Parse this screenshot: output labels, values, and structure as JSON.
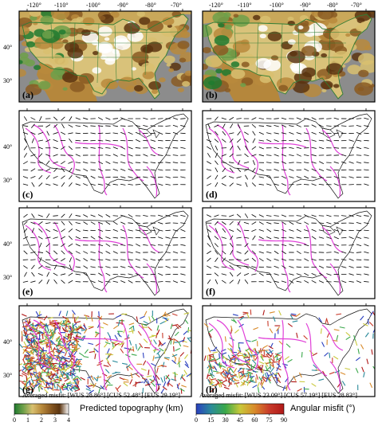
{
  "figure": {
    "top_axis": {
      "longitudes": [
        "-120°",
        "-110°",
        "-100°",
        "-90°",
        "-80°",
        "-70°"
      ]
    },
    "left_axis": {
      "latitudes": [
        "40°",
        "30°"
      ]
    },
    "panels": [
      {
        "label": "(a)",
        "kind": "topography"
      },
      {
        "label": "(b)",
        "kind": "topography"
      },
      {
        "label": "(c)",
        "kind": "stress-ticks"
      },
      {
        "label": "(d)",
        "kind": "stress-ticks"
      },
      {
        "label": "(e)",
        "kind": "stress-ticks"
      },
      {
        "label": "(f)",
        "kind": "stress-ticks"
      },
      {
        "label": "(g)",
        "kind": "misfit"
      },
      {
        "label": "(h)",
        "kind": "misfit"
      }
    ],
    "captions": {
      "g": "Averaged misfit: [WUS 28.86°]  [CUS 52.48°]  [EUS 29.19°]",
      "h": "Averaged misfit: [WUS 23.09°]  [CUS 57.19°]  [EUS 28.83°]"
    },
    "colorbars": {
      "topography": {
        "title": "Predicted topography (km)",
        "ticks": [
          "0",
          "1",
          "2",
          "3",
          "4"
        ],
        "colors": [
          "#1f7a2f",
          "#6fa04a",
          "#d8c070",
          "#b88a3c",
          "#8a5a22",
          "#5a3410",
          "#ffffff"
        ]
      },
      "misfit": {
        "title": "Angular misfit (°)",
        "ticks": [
          "0",
          "15",
          "30",
          "45",
          "60",
          "75",
          "90"
        ],
        "colors": [
          "#2a3fbf",
          "#2a8a9a",
          "#3aa84a",
          "#c8c83a",
          "#d88a2a",
          "#c83a2a",
          "#b01818"
        ]
      }
    },
    "colors": {
      "ocean": "#8c8c8c",
      "boundary_magenta": "#e040d8",
      "state_lines": "#2f7d34",
      "ticks": "#000000"
    }
  }
}
